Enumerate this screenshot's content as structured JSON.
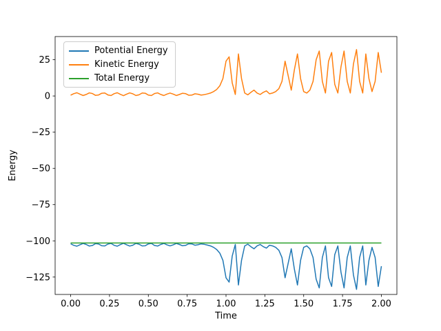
{
  "chart_data": {
    "type": "line",
    "title": "",
    "xlabel": "Time",
    "ylabel": "Energy",
    "grid": false,
    "legend_position": "upper left",
    "xlim": [
      -0.1,
      2.1
    ],
    "ylim": [
      -137,
      41
    ],
    "xticks": [
      0.0,
      0.25,
      0.5,
      0.75,
      1.0,
      1.25,
      1.5,
      1.75,
      2.0
    ],
    "xtick_labels": [
      "0.00",
      "0.25",
      "0.50",
      "0.75",
      "1.00",
      "1.25",
      "1.50",
      "1.75",
      "2.00"
    ],
    "yticks": [
      25,
      0,
      -25,
      -50,
      -75,
      -100,
      -125
    ],
    "ytick_labels": [
      "25",
      "0",
      "−25",
      "−50",
      "−75",
      "−100",
      "−125"
    ],
    "x": [
      0,
      0.02,
      0.04,
      0.06,
      0.08,
      0.1,
      0.12,
      0.14,
      0.16,
      0.18,
      0.2,
      0.22,
      0.24,
      0.26,
      0.28,
      0.3,
      0.32,
      0.34,
      0.36,
      0.38,
      0.4,
      0.42,
      0.44,
      0.46,
      0.48,
      0.5,
      0.52,
      0.54,
      0.56,
      0.58,
      0.6,
      0.62,
      0.64,
      0.66,
      0.68,
      0.7,
      0.72,
      0.74,
      0.76,
      0.78,
      0.8,
      0.82,
      0.84,
      0.86,
      0.88,
      0.9,
      0.92,
      0.94,
      0.96,
      0.98,
      1,
      1.02,
      1.04,
      1.06,
      1.08,
      1.1,
      1.12,
      1.14,
      1.16,
      1.18,
      1.2,
      1.22,
      1.24,
      1.26,
      1.28,
      1.3,
      1.32,
      1.34,
      1.36,
      1.38,
      1.4,
      1.42,
      1.44,
      1.46,
      1.48,
      1.5,
      1.52,
      1.54,
      1.56,
      1.58,
      1.6,
      1.62,
      1.64,
      1.66,
      1.68,
      1.7,
      1.72,
      1.74,
      1.76,
      1.78,
      1.8,
      1.82,
      1.84,
      1.86,
      1.88,
      1.9,
      1.92,
      1.94,
      1.96,
      1.98,
      2
    ],
    "series": [
      {
        "name": "Potential Energy",
        "color": "#1f77b4",
        "values": [
          -102,
          -103.1,
          -103.7,
          -102.7,
          -101.8,
          -102.5,
          -103.6,
          -103.2,
          -101.9,
          -102.2,
          -103.4,
          -103.5,
          -102.2,
          -101.8,
          -103.1,
          -103.7,
          -102.6,
          -101.7,
          -102.7,
          -103.6,
          -103,
          -101.8,
          -102.3,
          -103.5,
          -103.4,
          -102.1,
          -101.8,
          -103.2,
          -103.6,
          -102.5,
          -101.8,
          -102.8,
          -103.5,
          -102.8,
          -101.8,
          -102.5,
          -103.4,
          -103.1,
          -102,
          -102.1,
          -103,
          -102.7,
          -102.1,
          -102.4,
          -102.9,
          -103.5,
          -104.5,
          -106,
          -108.5,
          -113.5,
          -125.5,
          -128.5,
          -110.5,
          -102.5,
          -130.5,
          -113.5,
          -103.5,
          -102.3,
          -104,
          -105.5,
          -103.5,
          -102.5,
          -104,
          -105,
          -103,
          -103.5,
          -104.5,
          -106.5,
          -111.5,
          -125.5,
          -115.5,
          -105.5,
          -119.5,
          -130.5,
          -113.5,
          -104.5,
          -103.5,
          -105.5,
          -111.5,
          -126.5,
          -132.5,
          -111.5,
          -103.5,
          -125.5,
          -131.5,
          -109.5,
          -103.5,
          -121.5,
          -132.5,
          -111.5,
          -103.5,
          -123.5,
          -133.5,
          -111.5,
          -103.5,
          -130.5,
          -113.5,
          -104.5,
          -111.5,
          -131.5,
          -117.5
        ]
      },
      {
        "name": "Kinetic Energy",
        "color": "#ff7f0e",
        "values": [
          0.5,
          1.6,
          2.2,
          1.2,
          0.3,
          1,
          2.1,
          1.7,
          0.4,
          0.7,
          1.9,
          2,
          0.7,
          0.3,
          1.6,
          2.2,
          1.1,
          0.2,
          1.2,
          2.1,
          1.5,
          0.3,
          0.8,
          2,
          1.9,
          0.6,
          0.3,
          1.7,
          2.1,
          1,
          0.3,
          1.3,
          2,
          1.3,
          0.3,
          1,
          1.9,
          1.6,
          0.5,
          0.6,
          1.5,
          1.2,
          0.6,
          0.9,
          1.4,
          2,
          3,
          4.5,
          7,
          12,
          24,
          27,
          9,
          1,
          29,
          12,
          2,
          0.8,
          2.5,
          4,
          2,
          1,
          2.5,
          3.5,
          1.5,
          2,
          3,
          5,
          10,
          24,
          14,
          4,
          18,
          29,
          12,
          3,
          2,
          4,
          10,
          25,
          31,
          10,
          2,
          24,
          30,
          8,
          2,
          20,
          31,
          10,
          2,
          22,
          32,
          10,
          2,
          29,
          12,
          3,
          10,
          30,
          16
        ]
      },
      {
        "name": "Total Energy",
        "color": "#2ca02c",
        "constant": -101.5
      }
    ]
  }
}
